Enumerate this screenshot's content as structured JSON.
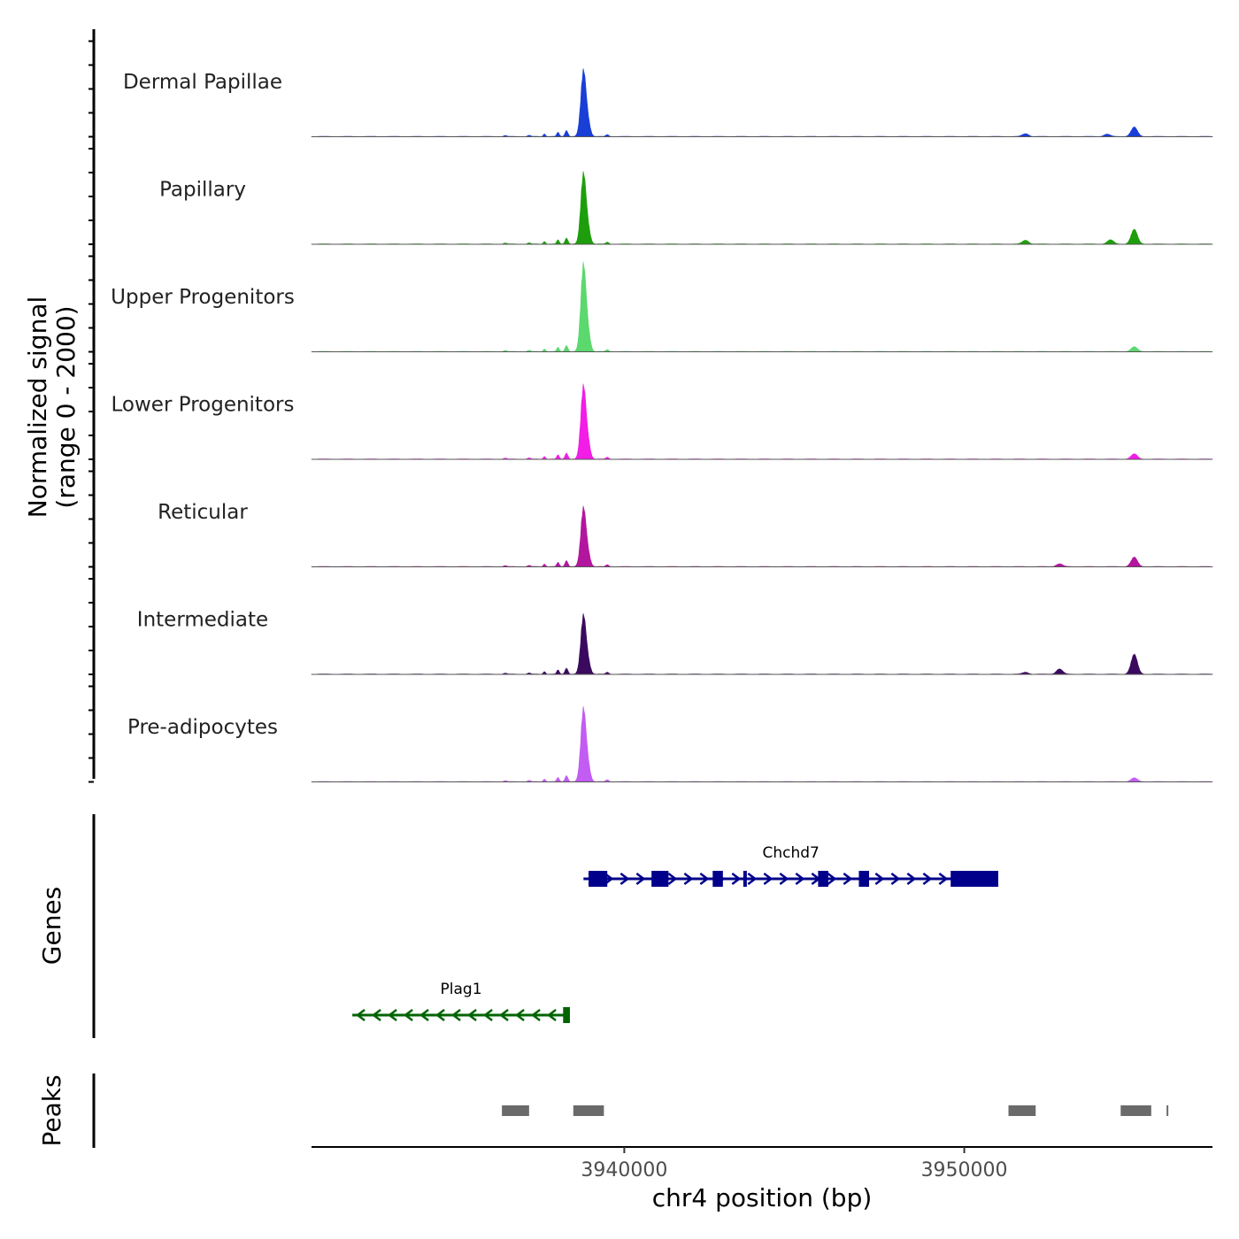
{
  "chart_data": {
    "type": "area",
    "title": "",
    "chromosome": "chr4",
    "xlabel": "chr4 position (bp)",
    "xlim": [
      3930800,
      3957300
    ],
    "xticks": [
      3940000,
      3950000
    ],
    "xtick_labels": [
      "3940000",
      "3950000"
    ],
    "coverage": {
      "ylabel_line1": "Normalized signal",
      "ylabel_line2": "(range 0 - 2000)",
      "ylim": [
        0,
        2000
      ],
      "tracks": [
        {
          "name": "Dermal Papillae",
          "color": "#1a3fd6",
          "main_peak": 1400,
          "peaks": [
            [
              3951800,
              60
            ],
            [
              3954200,
              50
            ],
            [
              3955000,
              200
            ]
          ]
        },
        {
          "name": "Papillary",
          "color": "#1e9e0c",
          "main_peak": 1500,
          "peaks": [
            [
              3951800,
              80
            ],
            [
              3954300,
              90
            ],
            [
              3955000,
              310
            ]
          ]
        },
        {
          "name": "Upper Progenitors",
          "color": "#5bd86e",
          "main_peak": 1850,
          "peaks": [
            [
              3955000,
              100
            ]
          ]
        },
        {
          "name": "Lower Progenitors",
          "color": "#f21de6",
          "main_peak": 1550,
          "peaks": [
            [
              3955000,
              110
            ]
          ]
        },
        {
          "name": "Reticular",
          "color": "#b3169e",
          "main_peak": 1250,
          "peaks": [
            [
              3952800,
              60
            ],
            [
              3955000,
              200
            ]
          ]
        },
        {
          "name": "Intermediate",
          "color": "#3a0a5e",
          "main_peak": 1250,
          "peaks": [
            [
              3951800,
              40
            ],
            [
              3952800,
              110
            ],
            [
              3955000,
              420
            ]
          ]
        },
        {
          "name": "Pre-adipocytes",
          "color": "#c25cf2",
          "main_peak": 1550,
          "peaks": [
            [
              3955000,
              80
            ]
          ]
        }
      ]
    },
    "genes": {
      "title": "Genes",
      "items": [
        {
          "name": "Chchd7",
          "strand": "+",
          "start": 3938800,
          "end": 3951000,
          "color": "#00008b",
          "exons": [
            [
              3938950,
              3939500
            ],
            [
              3940800,
              3941300
            ],
            [
              3942600,
              3942900
            ],
            [
              3943500,
              3943600
            ],
            [
              3945700,
              3946000
            ],
            [
              3946900,
              3947200
            ],
            [
              3949600,
              3951000
            ]
          ]
        },
        {
          "name": "Plag1",
          "strand": "-",
          "start": 3932000,
          "end": 3938400,
          "color": "#006400",
          "exons": [
            [
              3938200,
              3938400
            ]
          ]
        }
      ]
    },
    "peaks": {
      "title": "Peaks",
      "color": "#6a6a6a",
      "regions": [
        [
          3936400,
          3937200
        ],
        [
          3938500,
          3939400
        ],
        [
          3951300,
          3952100
        ],
        [
          3954600,
          3955500
        ],
        [
          3955950,
          3956000
        ]
      ]
    }
  }
}
